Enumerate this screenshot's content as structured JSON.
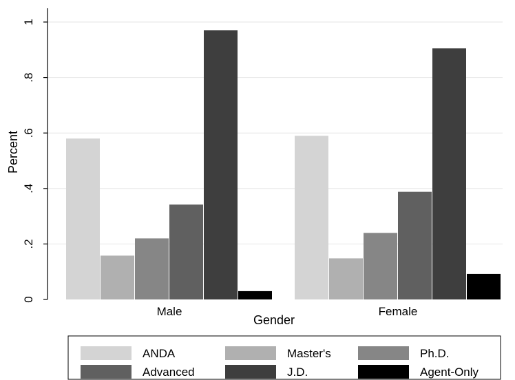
{
  "chart_data": {
    "type": "bar",
    "xlabel": "Gender",
    "ylabel": "Percent",
    "ylim": [
      0,
      1.05
    ],
    "yticks": [
      {
        "value": 0,
        "label": "0"
      },
      {
        "value": 0.2,
        "label": ".2"
      },
      {
        "value": 0.4,
        "label": ".4"
      },
      {
        "value": 0.6,
        "label": ".6"
      },
      {
        "value": 0.8,
        "label": ".8"
      },
      {
        "value": 1,
        "label": "1"
      }
    ],
    "grid": true,
    "legend_position": "bottom",
    "categories": [
      "Male",
      "Female"
    ],
    "series": [
      {
        "name": "ANDA",
        "color": "#d4d4d4",
        "values": [
          0.58,
          0.59
        ]
      },
      {
        "name": "Master's",
        "color": "#b0b0b0",
        "values": [
          0.158,
          0.148
        ]
      },
      {
        "name": "Ph.D.",
        "color": "#868686",
        "values": [
          0.22,
          0.24
        ]
      },
      {
        "name": "Advanced",
        "color": "#606060",
        "values": [
          0.342,
          0.388
        ]
      },
      {
        "name": "J.D.",
        "color": "#3e3e3e",
        "values": [
          0.97,
          0.905
        ]
      },
      {
        "name": "Agent-Only",
        "color": "#000000",
        "values": [
          0.03,
          0.092
        ]
      }
    ]
  }
}
